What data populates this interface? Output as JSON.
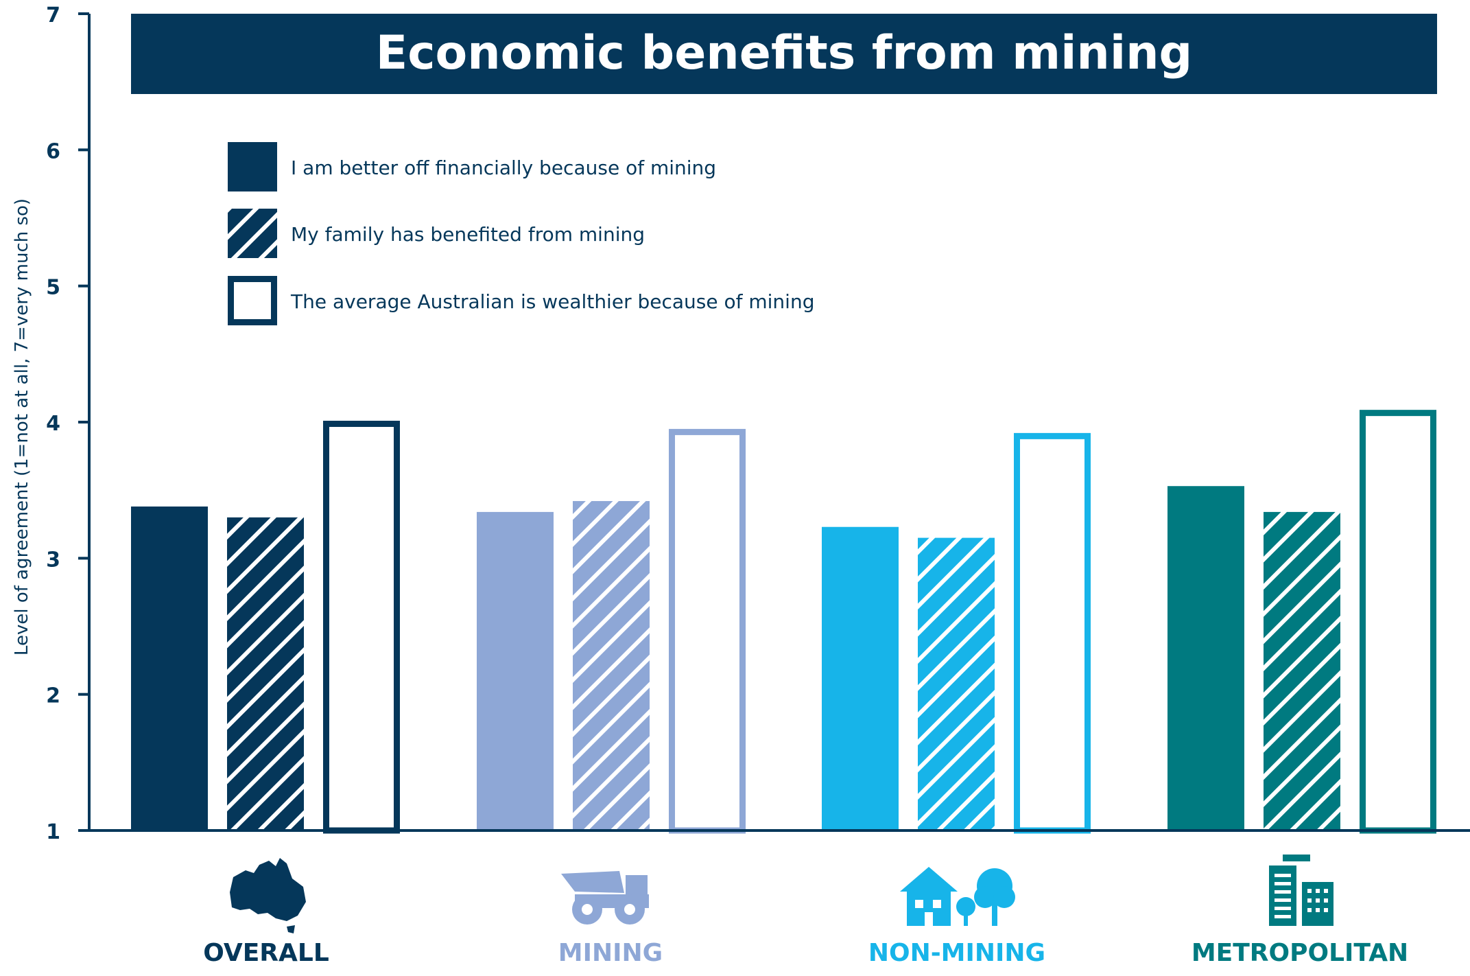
{
  "chart_data": {
    "type": "bar",
    "title": "Economic benefits from mining",
    "ylabel": "Level of agreement (1=not at all, 7=very much so)",
    "xlabel": "",
    "ylim": [
      1,
      7
    ],
    "yticks": [
      1,
      2,
      3,
      4,
      5,
      6,
      7
    ],
    "categories": [
      "OVERALL",
      "MINING",
      "NON-MINING",
      "METROPOLITAN"
    ],
    "category_icons": [
      "australia-map-icon",
      "mining-truck-icon",
      "house-and-trees-icon",
      "city-buildings-icon"
    ],
    "category_colors": [
      "#05375a",
      "#8ea7d6",
      "#17b4e9",
      "#007a80"
    ],
    "series": [
      {
        "name": "I am better off financially because of mining",
        "style": "solid",
        "values": [
          3.38,
          3.34,
          3.23,
          3.53
        ]
      },
      {
        "name": "My family has benefited from mining",
        "style": "hatched",
        "values": [
          3.3,
          3.42,
          3.15,
          3.34
        ]
      },
      {
        "name": "The average Australian is wealthier because of mining",
        "style": "outline",
        "values": [
          4.01,
          3.95,
          3.92,
          4.09
        ]
      }
    ],
    "legend_position": "top-left",
    "grid": false
  }
}
